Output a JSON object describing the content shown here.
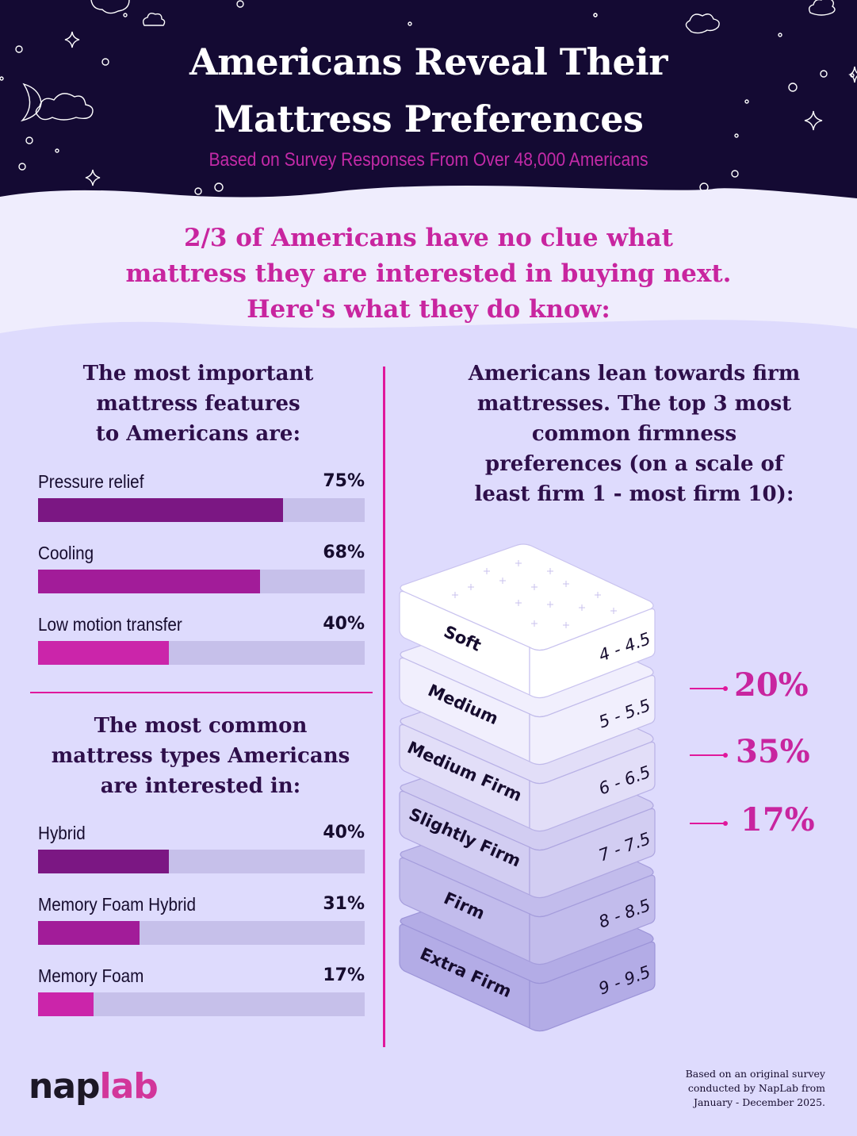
{
  "header": {
    "title_line1": "Americans Reveal Their",
    "title_line2": "Mattress Preferences",
    "subtitle": "Based on Survey Responses From Over 48,000 Americans"
  },
  "lead": {
    "line1": "2/3 of Americans have no clue what",
    "line2": "mattress they are interested in buying next.",
    "line3": "Here's what they do know:"
  },
  "features": {
    "heading_line1": "The most important",
    "heading_line2": "mattress features",
    "heading_line3": "to Americans are:",
    "items": [
      {
        "label": "Pressure relief",
        "value": "75%",
        "pct": 75,
        "color": "#7b1783"
      },
      {
        "label": "Cooling",
        "value": "68%",
        "pct": 68,
        "color": "#a21c99"
      },
      {
        "label": "Low motion transfer",
        "value": "40%",
        "pct": 40,
        "color": "#cb25aa"
      }
    ]
  },
  "types": {
    "heading_line1": "The most common",
    "heading_line2": "mattress types Americans",
    "heading_line3": "are interested in:",
    "items": [
      {
        "label": "Hybrid",
        "value": "40%",
        "pct": 40,
        "color": "#7b1783"
      },
      {
        "label": "Memory Foam Hybrid",
        "value": "31%",
        "pct": 31,
        "color": "#a21c99"
      },
      {
        "label": "Memory Foam",
        "value": "17%",
        "pct": 17,
        "color": "#cb25aa"
      }
    ]
  },
  "firmness": {
    "heading_line1": "Americans lean towards firm",
    "heading_line2": "mattresses. The top 3 most",
    "heading_line3": "common firmness",
    "heading_line4": "preferences (on a scale of",
    "heading_line5": "least firm 1 - most firm 10):",
    "mattresses": [
      {
        "label": "Soft",
        "range": "4 - 4.5",
        "color": "#ffffff"
      },
      {
        "label": "Medium",
        "range": "5 - 5.5",
        "color": "#f1effd"
      },
      {
        "label": "Medium Firm",
        "range": "6 - 6.5",
        "color": "#e2def8"
      },
      {
        "label": "Slightly Firm",
        "range": "7 - 7.5",
        "color": "#d2cdf2"
      },
      {
        "label": "Firm",
        "range": "8 - 8.5",
        "color": "#c2bcec"
      },
      {
        "label": "Extra Firm",
        "range": "9 - 9.5",
        "color": "#b3ace6"
      }
    ],
    "callouts": [
      {
        "target": "Medium",
        "value": "20%"
      },
      {
        "target": "Medium Firm",
        "value": "35%"
      },
      {
        "target": "Slightly Firm",
        "value": "17%"
      }
    ]
  },
  "footer": {
    "logo_part1": "nap",
    "logo_part2": "lab",
    "note_line1": "Based on an original survey",
    "note_line2": "conducted by NapLab from",
    "note_line3": "January - December 2025."
  },
  "colors": {
    "header_bg": "#140a33",
    "accent_pink": "#c8259f",
    "divider": "#e0189c",
    "page_bg": "#dedbfd",
    "lead_bg": "#efedfd",
    "dark_text": "#2e0f4a"
  },
  "chart_data": [
    {
      "type": "bar",
      "title": "The most important mattress features to Americans are:",
      "orientation": "horizontal",
      "categories": [
        "Pressure relief",
        "Cooling",
        "Low motion transfer"
      ],
      "values": [
        75,
        68,
        40
      ],
      "unit": "%",
      "xlim": [
        0,
        100
      ],
      "grid": false
    },
    {
      "type": "bar",
      "title": "The most common mattress types Americans are interested in:",
      "orientation": "horizontal",
      "categories": [
        "Hybrid",
        "Memory Foam Hybrid",
        "Memory Foam"
      ],
      "values": [
        40,
        31,
        17
      ],
      "unit": "%",
      "xlim": [
        0,
        100
      ],
      "grid": false
    },
    {
      "type": "table",
      "title": "Top 3 most common firmness preferences (scale: least firm 1 - most firm 10)",
      "categories": [
        "Soft (4 - 4.5)",
        "Medium (5 - 5.5)",
        "Medium Firm (6 - 6.5)",
        "Slightly Firm (7 - 7.5)",
        "Firm (8 - 8.5)",
        "Extra Firm (9 - 9.5)"
      ],
      "values": [
        null,
        20,
        35,
        17,
        null,
        null
      ],
      "unit": "%"
    }
  ]
}
